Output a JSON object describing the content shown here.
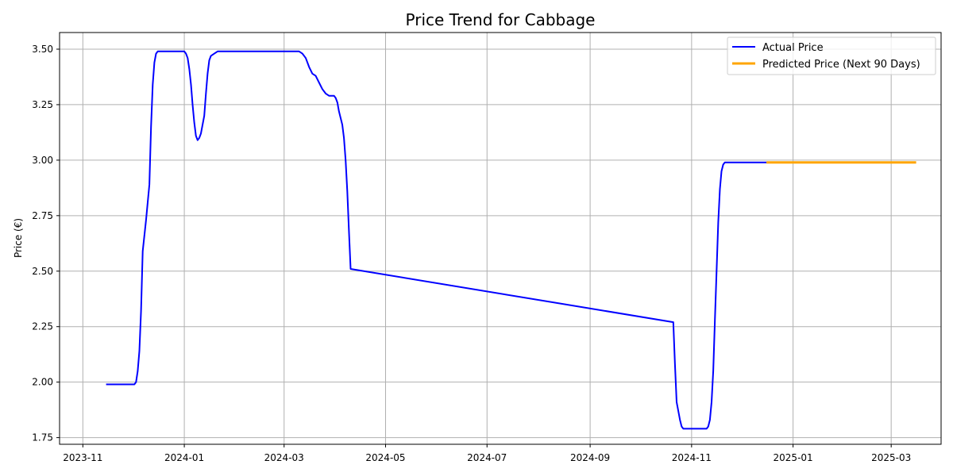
{
  "chart_data": {
    "type": "line",
    "title": "Price Trend for Cabbage",
    "xlabel": "",
    "ylabel": "Price (€)",
    "x_type": "date",
    "xlim": [
      "2023-10-18",
      "2025-03-31"
    ],
    "ylim": [
      1.72,
      3.575
    ],
    "x_ticks": [
      "2023-11-01",
      "2024-01-01",
      "2024-03-01",
      "2024-05-01",
      "2024-07-01",
      "2024-09-01",
      "2024-11-01",
      "2025-01-01",
      "2025-03-01"
    ],
    "x_tick_labels": [
      "2023-11",
      "2024-01",
      "2024-03",
      "2024-05",
      "2024-07",
      "2024-09",
      "2024-11",
      "2025-01",
      "2025-03"
    ],
    "y_ticks": [
      1.75,
      2.0,
      2.25,
      2.5,
      2.75,
      3.0,
      3.25,
      3.5
    ],
    "y_tick_labels": [
      "1.75",
      "2.00",
      "2.25",
      "2.50",
      "2.75",
      "3.00",
      "3.25",
      "3.50"
    ],
    "grid": true,
    "legend_position": "top-right",
    "series": [
      {
        "name": "Actual Price",
        "color": "#0000ff",
        "line_width": 2,
        "points": [
          [
            "2023-11-15",
            1.99
          ],
          [
            "2023-11-20",
            1.99
          ],
          [
            "2023-11-25",
            1.99
          ],
          [
            "2023-11-30",
            1.99
          ],
          [
            "2023-12-02",
            1.99
          ],
          [
            "2023-12-03",
            2.0
          ],
          [
            "2023-12-04",
            2.05
          ],
          [
            "2023-12-05",
            2.14
          ],
          [
            "2023-12-06",
            2.32
          ],
          [
            "2023-12-07",
            2.59
          ],
          [
            "2023-12-08",
            2.66
          ],
          [
            "2023-12-09",
            2.73
          ],
          [
            "2023-12-10",
            2.81
          ],
          [
            "2023-12-11",
            2.89
          ],
          [
            "2023-12-12",
            3.15
          ],
          [
            "2023-12-13",
            3.34
          ],
          [
            "2023-12-14",
            3.44
          ],
          [
            "2023-12-15",
            3.48
          ],
          [
            "2023-12-16",
            3.49
          ],
          [
            "2023-12-20",
            3.49
          ],
          [
            "2023-12-25",
            3.49
          ],
          [
            "2023-12-30",
            3.49
          ],
          [
            "2024-01-01",
            3.49
          ],
          [
            "2024-01-02",
            3.48
          ],
          [
            "2024-01-03",
            3.46
          ],
          [
            "2024-01-04",
            3.41
          ],
          [
            "2024-01-05",
            3.34
          ],
          [
            "2024-01-06",
            3.25
          ],
          [
            "2024-01-07",
            3.17
          ],
          [
            "2024-01-08",
            3.11
          ],
          [
            "2024-01-09",
            3.09
          ],
          [
            "2024-01-10",
            3.1
          ],
          [
            "2024-01-11",
            3.12
          ],
          [
            "2024-01-12",
            3.16
          ],
          [
            "2024-01-13",
            3.2
          ],
          [
            "2024-01-14",
            3.3
          ],
          [
            "2024-01-15",
            3.39
          ],
          [
            "2024-01-16",
            3.45
          ],
          [
            "2024-01-17",
            3.47
          ],
          [
            "2024-01-19",
            3.48
          ],
          [
            "2024-01-21",
            3.49
          ],
          [
            "2024-02-01",
            3.49
          ],
          [
            "2024-02-15",
            3.49
          ],
          [
            "2024-03-01",
            3.49
          ],
          [
            "2024-03-10",
            3.49
          ],
          [
            "2024-03-12",
            3.48
          ],
          [
            "2024-03-14",
            3.46
          ],
          [
            "2024-03-16",
            3.42
          ],
          [
            "2024-03-18",
            3.39
          ],
          [
            "2024-03-20",
            3.38
          ],
          [
            "2024-03-22",
            3.35
          ],
          [
            "2024-03-24",
            3.32
          ],
          [
            "2024-03-26",
            3.3
          ],
          [
            "2024-03-28",
            3.29
          ],
          [
            "2024-03-31",
            3.29
          ],
          [
            "2024-04-01",
            3.28
          ],
          [
            "2024-04-02",
            3.26
          ],
          [
            "2024-04-03",
            3.22
          ],
          [
            "2024-04-05",
            3.16
          ],
          [
            "2024-04-06",
            3.1
          ],
          [
            "2024-04-07",
            3.0
          ],
          [
            "2024-04-08",
            2.86
          ],
          [
            "2024-04-09",
            2.68
          ],
          [
            "2024-04-10",
            2.51
          ],
          [
            "2024-10-21",
            2.27
          ],
          [
            "2024-10-22",
            2.08
          ],
          [
            "2024-10-23",
            1.91
          ],
          [
            "2024-10-24",
            1.87
          ],
          [
            "2024-10-25",
            1.83
          ],
          [
            "2024-10-26",
            1.8
          ],
          [
            "2024-10-27",
            1.79
          ],
          [
            "2024-10-28",
            1.79
          ],
          [
            "2024-11-05",
            1.79
          ],
          [
            "2024-11-10",
            1.79
          ],
          [
            "2024-11-11",
            1.8
          ],
          [
            "2024-11-12",
            1.83
          ],
          [
            "2024-11-13",
            1.91
          ],
          [
            "2024-11-14",
            2.05
          ],
          [
            "2024-11-15",
            2.28
          ],
          [
            "2024-11-16",
            2.5
          ],
          [
            "2024-11-17",
            2.72
          ],
          [
            "2024-11-18",
            2.87
          ],
          [
            "2024-11-19",
            2.95
          ],
          [
            "2024-11-20",
            2.98
          ],
          [
            "2024-11-21",
            2.99
          ],
          [
            "2024-12-01",
            2.99
          ],
          [
            "2024-12-10",
            2.99
          ],
          [
            "2024-12-16",
            2.99
          ]
        ]
      },
      {
        "name": "Predicted Price (Next 90 Days)",
        "color": "#ffa500",
        "line_width": 3,
        "points": [
          [
            "2024-12-16",
            2.99
          ],
          [
            "2025-01-15",
            2.99
          ],
          [
            "2025-02-15",
            2.99
          ],
          [
            "2025-03-16",
            2.99
          ]
        ]
      }
    ]
  }
}
